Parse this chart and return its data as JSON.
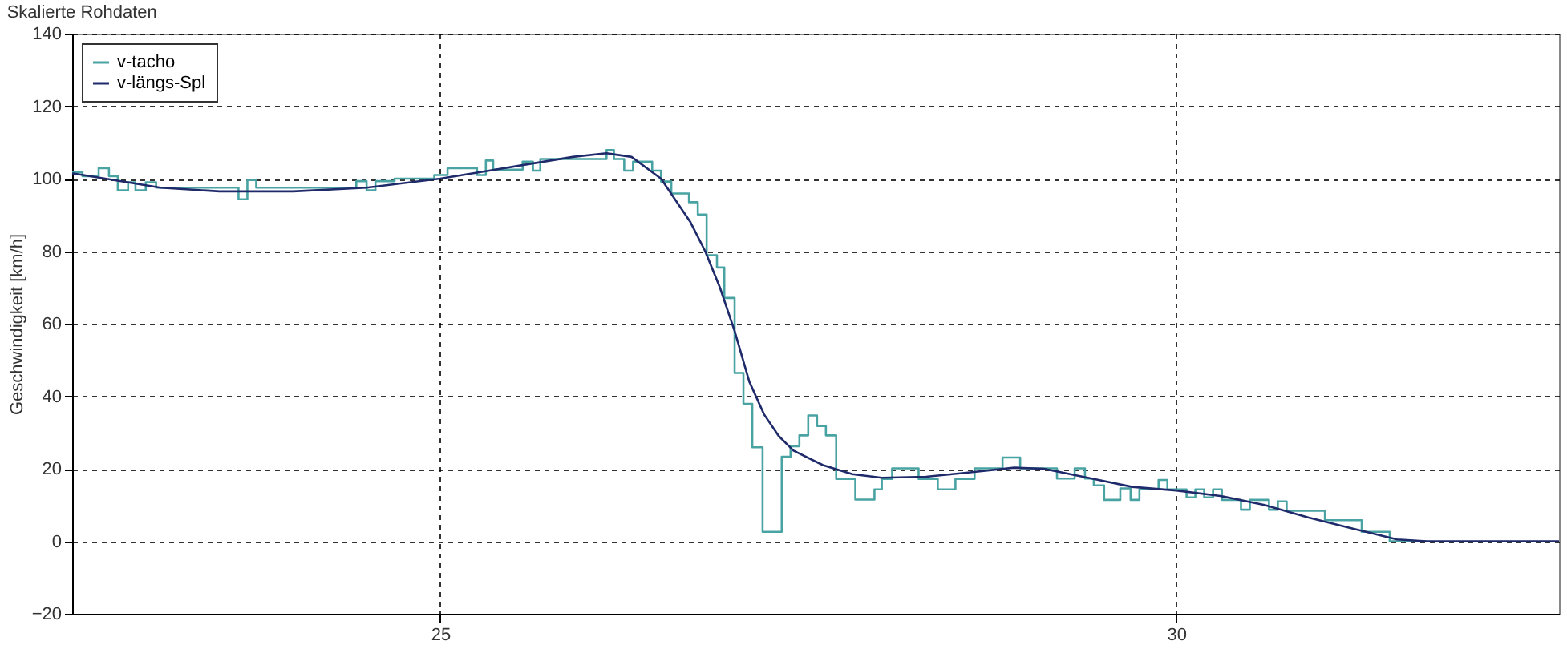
{
  "chart_data": {
    "type": "line",
    "title": "Skalierte Rohdaten",
    "ylabel": "Geschwindigkeit [km/h]",
    "xlim": [
      22.5,
      32.6
    ],
    "xticks": [
      25,
      30
    ],
    "ylim": [
      -20,
      140
    ],
    "yticks": [
      -20,
      0,
      20,
      40,
      60,
      80,
      100,
      120,
      140
    ],
    "grid": true,
    "legend": "top left",
    "marker": "none",
    "series": [
      {
        "name": "v-tacho",
        "type": "step",
        "color": "#4aa3a3",
        "x": [
          22.5,
          22.57,
          22.68,
          22.75,
          22.81,
          22.88,
          22.93,
          23.0,
          23.07,
          23.63,
          23.69,
          23.75,
          24.43,
          24.5,
          24.56,
          24.69,
          24.96,
          25.05,
          25.25,
          25.31,
          25.36,
          25.56,
          25.63,
          25.68,
          26.13,
          26.18,
          26.25,
          26.31,
          26.44,
          26.5,
          26.57,
          26.69,
          26.75,
          26.81,
          26.88,
          26.93,
          27.0,
          27.06,
          27.12,
          27.19,
          27.32,
          27.38,
          27.44,
          27.5,
          27.56,
          27.62,
          27.69,
          27.82,
          27.95,
          28.0,
          28.07,
          28.25,
          28.38,
          28.5,
          28.63,
          28.82,
          28.94,
          29.19,
          29.31,
          29.38,
          29.44,
          29.51,
          29.62,
          29.69,
          29.75,
          29.88,
          29.94,
          30.07,
          30.13,
          30.19,
          30.25,
          30.31,
          30.44,
          30.5,
          30.63,
          30.69,
          30.75,
          31.01,
          31.26,
          31.45,
          31.7
        ],
        "values": [
          101.8,
          100.7,
          102.9,
          100.7,
          96.8,
          99,
          96.8,
          99,
          97.5,
          94.3,
          99.6,
          97.5,
          99.3,
          96.8,
          99.3,
          100,
          101,
          102.9,
          101,
          105,
          102.5,
          104.7,
          102.2,
          105.4,
          107.9,
          105.4,
          102.2,
          104.7,
          102.2,
          99.2,
          95.9,
          93.5,
          90.1,
          78.9,
          75.5,
          67.1,
          46.4,
          37.9,
          25.9,
          2.6,
          23.3,
          26.2,
          29.2,
          34.7,
          31.8,
          29.2,
          17.2,
          11.5,
          14.3,
          17.2,
          20.1,
          17.2,
          14.3,
          17.2,
          20.1,
          23.1,
          20.1,
          17.3,
          20.1,
          17.3,
          15.4,
          11.4,
          14.6,
          11.4,
          14.3,
          16.9,
          14.3,
          12.1,
          14.3,
          12.1,
          14.3,
          11.4,
          8.7,
          11.4,
          8.7,
          11,
          8.4,
          5.8,
          2.6,
          0,
          0
        ]
      },
      {
        "name": "v-längs-Spl",
        "type": "line",
        "color": "#1f2a6b",
        "x": [
          22.5,
          22.8,
          23.1,
          23.5,
          24.0,
          24.5,
          25.0,
          25.3,
          25.6,
          25.9,
          26.13,
          26.3,
          26.5,
          26.7,
          26.8,
          26.9,
          27.0,
          27.1,
          27.2,
          27.3,
          27.4,
          27.6,
          27.8,
          28.0,
          28.3,
          28.6,
          28.9,
          29.1,
          29.4,
          29.7,
          30.0,
          30.3,
          30.6,
          30.9,
          31.2,
          31.5,
          31.7,
          32.6
        ],
        "values": [
          101.5,
          99.5,
          97.5,
          96.5,
          96.5,
          97.5,
          100,
          102,
          104,
          106,
          107,
          106,
          100,
          88,
          80,
          70,
          58,
          44,
          35,
          29,
          25,
          21,
          18.5,
          17.5,
          17.8,
          19,
          20.3,
          20,
          17.5,
          15,
          14,
          12.5,
          10,
          6.5,
          3.5,
          0.5,
          0,
          0
        ]
      }
    ]
  }
}
